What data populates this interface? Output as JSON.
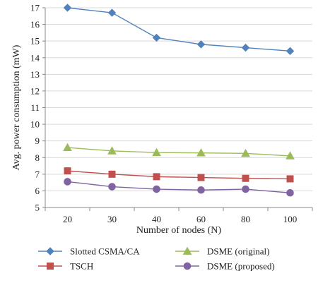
{
  "chart_data": {
    "type": "line",
    "x": [
      "20",
      "30",
      "40",
      "60",
      "80",
      "100"
    ],
    "series": [
      {
        "name": "Slotted CSMA/CA",
        "values": [
          17.0,
          16.7,
          15.2,
          14.8,
          14.6,
          14.4
        ],
        "color": "#4f81bd",
        "marker": "diamond"
      },
      {
        "name": "TSCH",
        "values": [
          7.2,
          7.0,
          6.85,
          6.8,
          6.75,
          6.72
        ],
        "color": "#c0504d",
        "marker": "square"
      },
      {
        "name": "DSME (original)",
        "values": [
          8.6,
          8.4,
          8.3,
          8.28,
          8.25,
          8.1
        ],
        "color": "#9bbb59",
        "marker": "triangle"
      },
      {
        "name": "DSME (proposed)",
        "values": [
          6.55,
          6.25,
          6.1,
          6.05,
          6.1,
          5.88
        ],
        "color": "#8064a2",
        "marker": "circle"
      }
    ],
    "xlabel": "Number of nodes (N)",
    "ylabel": "Avg. power consumption (mW)",
    "ylim": [
      5,
      17
    ],
    "yticks": [
      5,
      6,
      7,
      8,
      9,
      10,
      11,
      12,
      13,
      14,
      15,
      16,
      17
    ],
    "grid": "horizontal",
    "legend_position": "bottom"
  }
}
